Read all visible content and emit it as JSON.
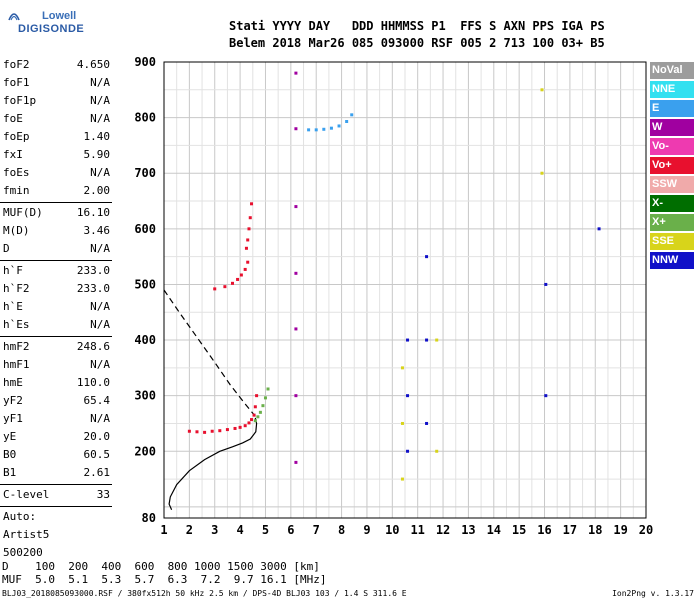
{
  "logo": {
    "line1": "Lowell",
    "line2": "DIGISONDE"
  },
  "header": {
    "row1": "Stati YYYY DAY   DDD HHMMSS P1  FFS S AXN PPS IGA PS",
    "row2": "Belem 2018 Mar26 085 093000 RSF 005 2 713 100 03+ B5"
  },
  "params": {
    "group1": [
      {
        "name": "foF2",
        "value": "4.650"
      },
      {
        "name": "foF1",
        "value": "N/A"
      },
      {
        "name": "foF1p",
        "value": "N/A"
      },
      {
        "name": "foE",
        "value": "N/A"
      },
      {
        "name": "foEp",
        "value": "1.40"
      },
      {
        "name": "fxI",
        "value": "5.90"
      },
      {
        "name": "foEs",
        "value": "N/A"
      },
      {
        "name": "fmin",
        "value": "2.00"
      }
    ],
    "group2": [
      {
        "name": "MUF(D)",
        "value": "16.10"
      },
      {
        "name": "M(D)",
        "value": "3.46"
      },
      {
        "name": "D",
        "value": "N/A"
      }
    ],
    "group3": [
      {
        "name": "h`F",
        "value": "233.0"
      },
      {
        "name": "h`F2",
        "value": "233.0"
      },
      {
        "name": "h`E",
        "value": "N/A"
      },
      {
        "name": "h`Es",
        "value": "N/A"
      }
    ],
    "group4": [
      {
        "name": "hmF2",
        "value": "248.6"
      },
      {
        "name": "hmF1",
        "value": "N/A"
      },
      {
        "name": "hmE",
        "value": "110.0"
      },
      {
        "name": "yF2",
        "value": "65.4"
      },
      {
        "name": "yF1",
        "value": "N/A"
      },
      {
        "name": "yE",
        "value": "20.0"
      },
      {
        "name": "B0",
        "value": "60.5"
      },
      {
        "name": "B1",
        "value": "2.61"
      }
    ],
    "group5": [
      {
        "name": "C-level",
        "value": "33"
      }
    ],
    "auto": [
      "Auto:",
      "Artist5",
      "500200"
    ]
  },
  "legend": [
    {
      "label": "NoVal",
      "color": "#9c9c9c"
    },
    {
      "label": "NNE",
      "color": "#33e0f0"
    },
    {
      "label": "E",
      "color": "#3aa0ee"
    },
    {
      "label": "W",
      "color": "#a000a0"
    },
    {
      "label": "Vo-",
      "color": "#ee3ab0"
    },
    {
      "label": "Vo+",
      "color": "#e8102e"
    },
    {
      "label": "SSW",
      "color": "#f0aaaa"
    },
    {
      "label": "X-",
      "color": "#006e00"
    },
    {
      "label": "X+",
      "color": "#6ab04a"
    },
    {
      "label": "SSE",
      "color": "#d8d41a"
    },
    {
      "label": "NNW",
      "color": "#1010c8"
    }
  ],
  "dtable": {
    "row1": "D    100  200  400  600  800 1000 1500 3000 [km]",
    "row2": "MUF  5.0  5.1  5.3  5.7  6.3  7.2  9.7 16.1 [MHz]"
  },
  "footer": {
    "left": "BLJ03_2018085093000.RSF / 380fx512h 50 kHz 2.5 km / DPS-4D BLJ03 103 / 1.4 S 311.6 E",
    "right": "Ion2Png v. 1.3.17"
  },
  "chart_data": {
    "type": "scatter",
    "title": "",
    "xlabel": "",
    "ylabel": "",
    "xlim": [
      1,
      20
    ],
    "ylim": [
      80,
      900
    ],
    "x_ticks": [
      1,
      2,
      3,
      4,
      5,
      6,
      7,
      8,
      9,
      10,
      11,
      12,
      13,
      14,
      15,
      16,
      17,
      18,
      19,
      20
    ],
    "y_ticks": [
      80,
      200,
      300,
      400,
      500,
      600,
      700,
      800,
      900
    ],
    "grid": true,
    "profile": {
      "x": [
        1.3,
        1.2,
        1.25,
        1.5,
        2.0,
        2.6,
        3.2,
        3.7,
        4.1,
        4.4,
        4.62,
        4.65,
        4.6
      ],
      "y": [
        95,
        105,
        118,
        140,
        165,
        185,
        200,
        208,
        215,
        222,
        235,
        250,
        260
      ]
    },
    "profile_dashed": {
      "x": [
        1.0,
        1.6,
        2.3,
        3.0,
        3.6,
        4.2,
        4.65
      ],
      "y": [
        490,
        450,
        405,
        360,
        320,
        285,
        260
      ]
    },
    "traces": [
      {
        "name": "Vo+",
        "x": [
          2.0,
          2.3,
          2.6,
          2.9,
          3.2,
          3.5,
          3.8,
          4.0,
          4.2,
          4.35,
          4.45,
          4.55,
          4.6,
          4.65
        ],
        "y": [
          236,
          235,
          234,
          236,
          237,
          239,
          241,
          243,
          246,
          251,
          257,
          265,
          280,
          300
        ]
      },
      {
        "name": "Vo+",
        "x": [
          3.0,
          3.4,
          3.7,
          3.9,
          4.05,
          4.2,
          4.3
        ],
        "y": [
          492,
          496,
          502,
          509,
          517,
          527,
          540
        ]
      },
      {
        "name": "Vo+",
        "x": [
          4.25,
          4.3,
          4.35,
          4.4,
          4.45
        ],
        "y": [
          565,
          580,
          600,
          620,
          645
        ]
      },
      {
        "name": "X+",
        "x": [
          4.6,
          4.7,
          4.8,
          4.9,
          5.0,
          5.1
        ],
        "y": [
          255,
          262,
          270,
          282,
          296,
          312
        ]
      },
      {
        "name": "W",
        "x": [
          6.2,
          6.2,
          6.2,
          6.2,
          6.2,
          6.2,
          6.2
        ],
        "y": [
          880,
          780,
          640,
          520,
          420,
          300,
          180
        ]
      },
      {
        "name": "E",
        "x": [
          6.7,
          7.0,
          7.3,
          7.6,
          7.9,
          8.2,
          8.4
        ],
        "y": [
          778,
          778,
          779,
          781,
          785,
          793,
          805
        ]
      },
      {
        "name": "NNW",
        "x": [
          10.6,
          10.6,
          10.6,
          11.35,
          11.35,
          11.35,
          16.05,
          16.05,
          18.15
        ],
        "y": [
          200,
          300,
          400,
          250,
          400,
          550,
          300,
          500,
          600
        ]
      },
      {
        "name": "SSE",
        "x": [
          10.4,
          10.4,
          10.4,
          11.75,
          11.75,
          15.9,
          15.9
        ],
        "y": [
          150,
          250,
          350,
          200,
          400,
          700,
          850
        ]
      }
    ]
  }
}
